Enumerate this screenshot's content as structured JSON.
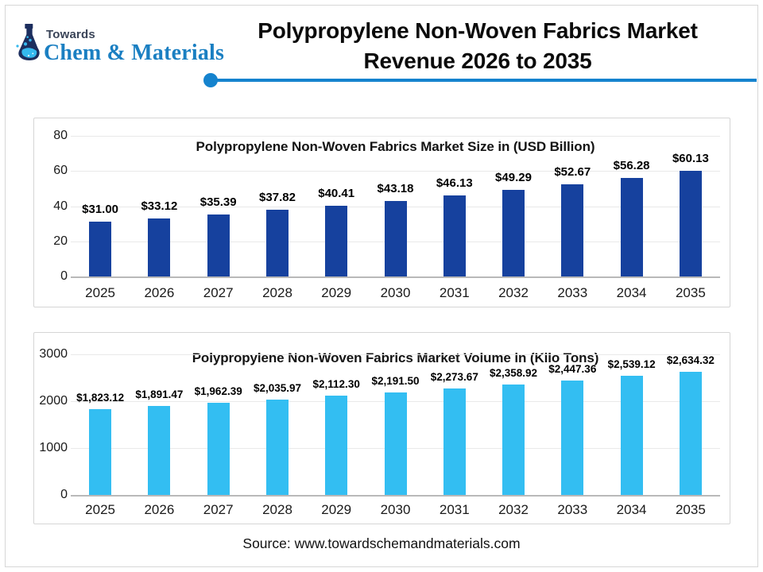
{
  "header": {
    "logo": {
      "top_text": "Towards",
      "bottom_text": "Chem & Materials",
      "navy": "#1c2e5e",
      "blue": "#1a7fc2",
      "cyan": "#35b9ee"
    },
    "title_line1": "Polypropylene Non-Woven Fabrics Market",
    "title_line2": "Revenue 2026 to 2035",
    "accent_color": "#1583ce"
  },
  "chart_data": [
    {
      "id": "market-size",
      "type": "bar",
      "title": "Polypropylene Non-Woven Fabrics Market Size in (USD Billion)",
      "categories": [
        "2025",
        "2026",
        "2027",
        "2028",
        "2029",
        "2030",
        "2031",
        "2032",
        "2033",
        "2034",
        "2035"
      ],
      "values": [
        31.0,
        33.12,
        35.39,
        37.82,
        40.41,
        43.18,
        46.13,
        49.29,
        52.67,
        56.28,
        60.13
      ],
      "labels": [
        "$31.00",
        "$33.12",
        "$35.39",
        "$37.82",
        "$40.41",
        "$43.18",
        "$46.13",
        "$49.29",
        "$52.67",
        "$56.28",
        "$60.13"
      ],
      "ylim": [
        0,
        80
      ],
      "yticks": [
        0,
        20,
        40,
        60,
        80
      ],
      "bar_color": "#16419e",
      "grid": true,
      "legend": "none",
      "xlabel": "",
      "ylabel": ""
    },
    {
      "id": "market-volume",
      "type": "bar",
      "title": "Polypropylene Non-Woven Fabrics Market Volume in (Kilo Tons)",
      "categories": [
        "2025",
        "2026",
        "2027",
        "2028",
        "2029",
        "2030",
        "2031",
        "2032",
        "2033",
        "2034",
        "2035"
      ],
      "values": [
        1823.12,
        1891.47,
        1962.39,
        2035.97,
        2112.3,
        2191.5,
        2273.67,
        2358.92,
        2447.36,
        2539.12,
        2634.32
      ],
      "labels": [
        "$1,823.12",
        "$1,891.47",
        "$1,962.39",
        "$2,035.97",
        "$2,112.30",
        "$2,191.50",
        "$2,273.67",
        "$2,358.92",
        "$2,447.36",
        "$2,539.12",
        "$2,634.32"
      ],
      "ylim": [
        0,
        3000
      ],
      "yticks": [
        0,
        1000,
        2000,
        3000
      ],
      "bar_color": "#33bef2",
      "grid": true,
      "legend": "none",
      "xlabel": "",
      "ylabel": ""
    }
  ],
  "footer": {
    "source_text": "Source: www.towardschemandmaterials.com"
  }
}
